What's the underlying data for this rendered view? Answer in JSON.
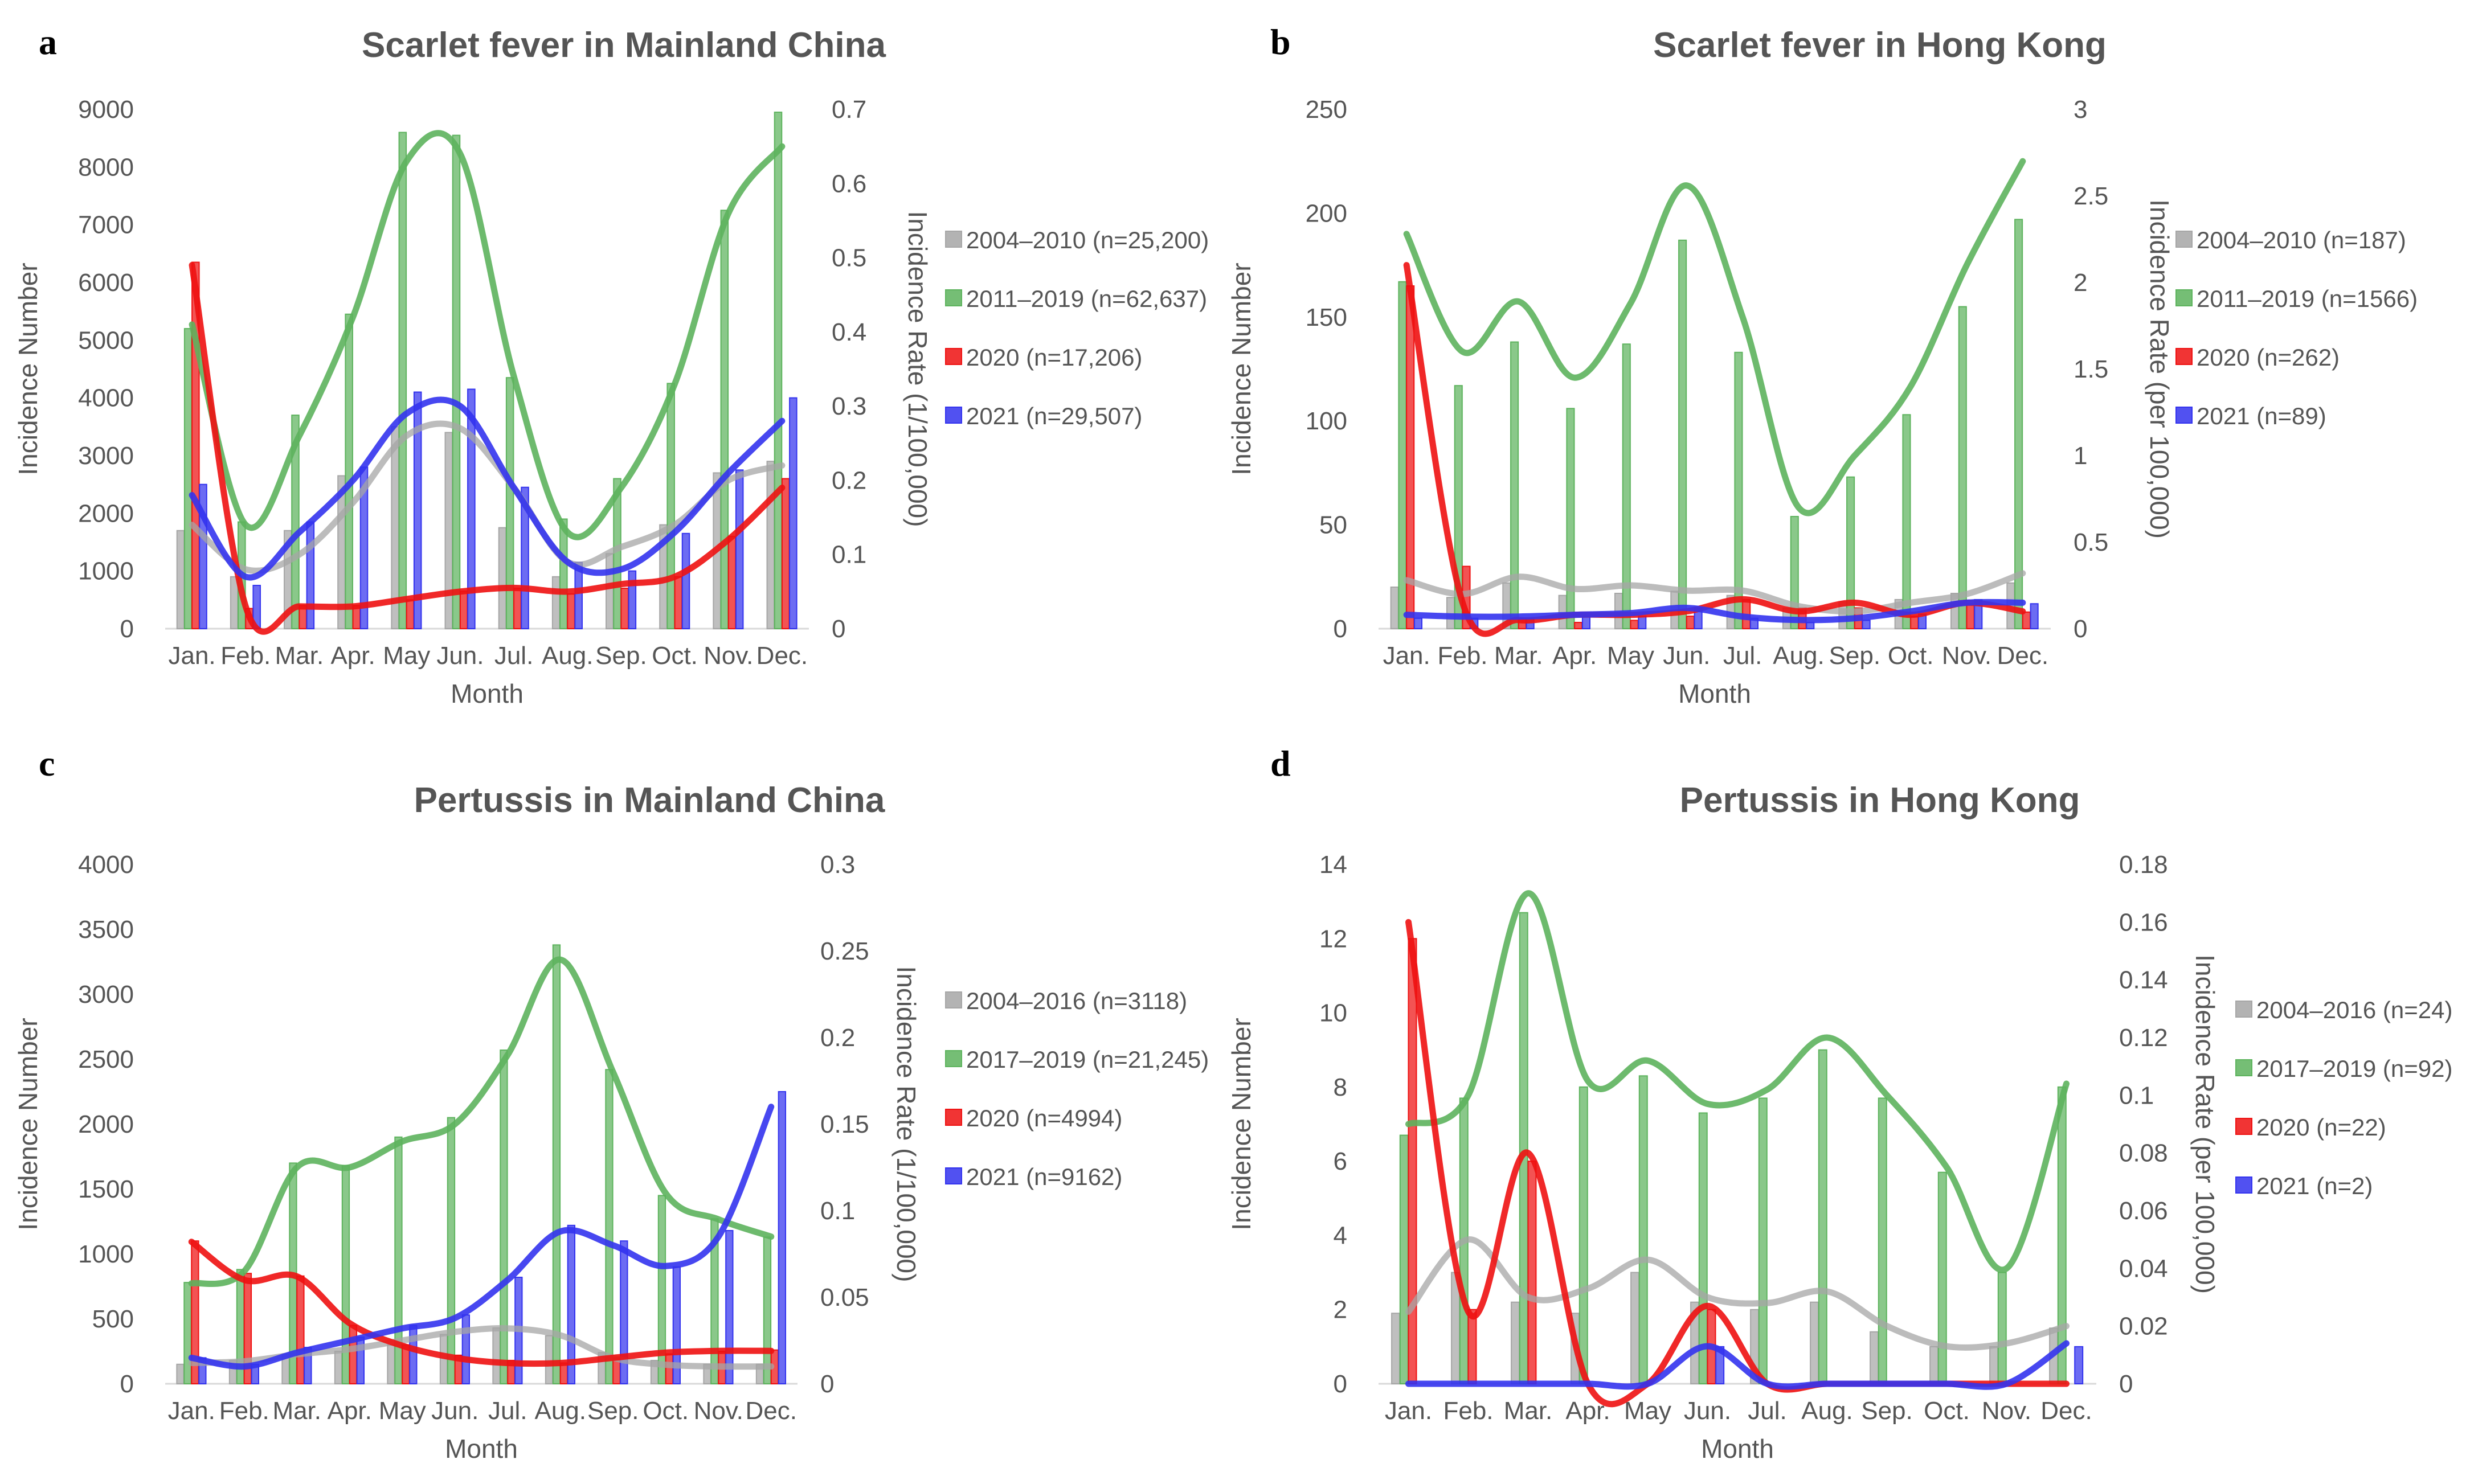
{
  "chart_data": [
    {
      "type": "bar",
      "panel": "a",
      "title": "Scarlet fever in Mainland China",
      "xlabel": "Month",
      "ylabel": "Incidence Number",
      "y2label": "Incidence Rate (1/100,000)",
      "categories": [
        "Jan.",
        "Feb.",
        "Mar.",
        "Apr.",
        "May",
        "Jun.",
        "Jul.",
        "Aug.",
        "Sep.",
        "Oct.",
        "Nov.",
        "Dec."
      ],
      "ylim": [
        0,
        9000
      ],
      "yticks": [
        "0",
        "1000",
        "2000",
        "3000",
        "4000",
        "5000",
        "6000",
        "7000",
        "8000",
        "9000"
      ],
      "y2lim": [
        0,
        0.7
      ],
      "y2ticks": [
        "0",
        "0.1",
        "0.2",
        "0.3",
        "0.4",
        "0.5",
        "0.6",
        "0.7"
      ],
      "series": [
        {
          "name": "2004–2010 (n=25,200)",
          "color": "#a6a6a6",
          "bars": [
            1700,
            900,
            1700,
            2650,
            3500,
            3400,
            1750,
            900,
            1300,
            1800,
            2700,
            2900
          ],
          "rate_line": [
            0.14,
            0.08,
            0.1,
            0.17,
            0.26,
            0.27,
            0.19,
            0.09,
            0.11,
            0.14,
            0.2,
            0.22
          ]
        },
        {
          "name": "2011–2019 (n=62,637)",
          "color": "#5db35d",
          "bars": [
            5200,
            1850,
            3700,
            5450,
            8600,
            8550,
            4350,
            1900,
            2600,
            4250,
            7250,
            8950
          ],
          "rate_line": [
            0.41,
            0.14,
            0.26,
            0.42,
            0.63,
            0.64,
            0.34,
            0.13,
            0.19,
            0.33,
            0.56,
            0.65
          ]
        },
        {
          "name": "2020 (n=17,206)",
          "color": "#ee1111",
          "bars": [
            6350,
            350,
            400,
            400,
            500,
            650,
            700,
            600,
            700,
            900,
            1600,
            2600
          ],
          "rate_line": [
            0.49,
            0.03,
            0.03,
            0.03,
            0.04,
            0.05,
            0.055,
            0.05,
            0.06,
            0.07,
            0.12,
            0.19
          ]
        },
        {
          "name": "2021 (n=29,507)",
          "color": "#3333ee",
          "bars": [
            2500,
            750,
            1850,
            2800,
            4100,
            4150,
            2450,
            1150,
            1000,
            1650,
            2750,
            4000
          ],
          "rate_line": [
            0.18,
            0.07,
            0.13,
            0.2,
            0.29,
            0.3,
            0.19,
            0.09,
            0.08,
            0.13,
            0.21,
            0.28
          ]
        }
      ]
    },
    {
      "type": "bar",
      "panel": "b",
      "title": "Scarlet fever in Hong Kong",
      "xlabel": "Month",
      "ylabel": "Incidence Number",
      "y2label": "Incidence Rate (per 100,000)",
      "categories": [
        "Jan.",
        "Feb.",
        "Mar.",
        "Apr.",
        "May",
        "Jun.",
        "Jul.",
        "Aug.",
        "Sep.",
        "Oct.",
        "Nov.",
        "Dec."
      ],
      "ylim": [
        0,
        250
      ],
      "yticks": [
        "0",
        "50",
        "100",
        "150",
        "200",
        "250"
      ],
      "y2lim": [
        0,
        3
      ],
      "y2ticks": [
        "0",
        "0.5",
        "1",
        "1.5",
        "2",
        "2.5",
        "3"
      ],
      "series": [
        {
          "name": "2004–2010 (n=187)",
          "color": "#a6a6a6",
          "bars": [
            20,
            15,
            22,
            16,
            17,
            18,
            16,
            10,
            13,
            14,
            17,
            22
          ],
          "rate_line": [
            0.28,
            0.2,
            0.3,
            0.23,
            0.25,
            0.22,
            0.22,
            0.13,
            0.1,
            0.15,
            0.2,
            0.32
          ]
        },
        {
          "name": "2011–2019 (n=1566)",
          "color": "#5db35d",
          "bars": [
            167,
            117,
            138,
            106,
            137,
            187,
            133,
            54,
            73,
            103,
            155,
            197
          ],
          "rate_line": [
            2.28,
            1.6,
            1.89,
            1.45,
            1.88,
            2.56,
            1.8,
            0.7,
            1.0,
            1.4,
            2.1,
            2.7
          ]
        },
        {
          "name": "2020 (n=262)",
          "color": "#ee1111",
          "bars": [
            165,
            30,
            5,
            3,
            4,
            6,
            14,
            10,
            10,
            6,
            12,
            8
          ],
          "rate_line": [
            2.1,
            0.15,
            0.05,
            0.08,
            0.08,
            0.1,
            0.17,
            0.1,
            0.15,
            0.08,
            0.15,
            0.1
          ]
        },
        {
          "name": "2021 (n=89)",
          "color": "#3333ee",
          "bars": [
            5,
            5,
            5,
            6,
            6,
            10,
            5,
            3,
            4,
            7,
            14,
            12
          ],
          "rate_line": [
            0.08,
            0.07,
            0.07,
            0.08,
            0.09,
            0.12,
            0.07,
            0.05,
            0.06,
            0.1,
            0.15,
            0.15
          ]
        }
      ]
    },
    {
      "type": "bar",
      "panel": "c",
      "title": "Pertussis in Mainland China",
      "xlabel": "Month",
      "ylabel": "Incidence Number",
      "y2label": "Incidence Rate (1/100,000)",
      "categories": [
        "Jan.",
        "Feb.",
        "Mar.",
        "Apr.",
        "May",
        "Jun.",
        "Jul.",
        "Aug.",
        "Sep.",
        "Oct.",
        "Nov.",
        "Dec."
      ],
      "ylim": [
        0,
        4000
      ],
      "yticks": [
        "0",
        "500",
        "1000",
        "1500",
        "2000",
        "2500",
        "3000",
        "3500",
        "4000"
      ],
      "y2lim": [
        0,
        0.3
      ],
      "y2ticks": [
        "0",
        "0.05",
        "0.1",
        "0.15",
        "0.2",
        "0.25",
        "0.3"
      ],
      "series": [
        {
          "name": "2004–2016 (n=3118)",
          "color": "#a6a6a6",
          "bars": [
            150,
            180,
            230,
            250,
            300,
            380,
            430,
            370,
            240,
            180,
            150,
            150
          ],
          "rate_line": [
            0.012,
            0.013,
            0.017,
            0.02,
            0.025,
            0.03,
            0.032,
            0.028,
            0.015,
            0.011,
            0.01,
            0.01
          ]
        },
        {
          "name": "2017–2019 (n=21,245)",
          "color": "#5db35d",
          "bars": [
            780,
            880,
            1700,
            1680,
            1900,
            2050,
            2570,
            3380,
            2420,
            1450,
            1270,
            1130
          ],
          "rate_line": [
            0.058,
            0.065,
            0.125,
            0.125,
            0.14,
            0.15,
            0.19,
            0.245,
            0.18,
            0.11,
            0.095,
            0.085
          ]
        },
        {
          "name": "2020 (n=4994)",
          "color": "#ee1111",
          "bars": [
            1100,
            850,
            830,
            450,
            300,
            220,
            180,
            160,
            200,
            230,
            250,
            260
          ],
          "rate_line": [
            0.082,
            0.06,
            0.062,
            0.035,
            0.022,
            0.015,
            0.012,
            0.012,
            0.015,
            0.018,
            0.019,
            0.019
          ]
        },
        {
          "name": "2021 (n=9162)",
          "color": "#3333ee",
          "bars": [
            200,
            150,
            280,
            360,
            450,
            530,
            820,
            1220,
            1100,
            900,
            1180,
            2250
          ],
          "rate_line": [
            0.015,
            0.01,
            0.018,
            0.025,
            0.032,
            0.038,
            0.06,
            0.088,
            0.08,
            0.068,
            0.085,
            0.16
          ]
        }
      ]
    },
    {
      "type": "bar",
      "panel": "d",
      "title": "Pertussis in Hong Kong",
      "xlabel": "Month",
      "ylabel": "Incidence Number",
      "y2label": "Incidence Rate (per 100,000)",
      "categories": [
        "Jan.",
        "Feb.",
        "Mar.",
        "Apr.",
        "May",
        "Jun.",
        "Jul.",
        "Aug.",
        "Sep.",
        "Oct.",
        "Nov.",
        "Dec."
      ],
      "ylim": [
        0,
        14
      ],
      "yticks": [
        "0",
        "2",
        "4",
        "6",
        "8",
        "10",
        "12",
        "14"
      ],
      "y2lim": [
        0,
        0.18
      ],
      "y2ticks": [
        "0",
        "0.02",
        "0.04",
        "0.06",
        "0.08",
        "0.1",
        "0.12",
        "0.14",
        "0.16",
        "0.18"
      ],
      "series": [
        {
          "name": "2004–2016 (n=24)",
          "color": "#a6a6a6",
          "bars": [
            1.9,
            3.0,
            2.2,
            1.9,
            3.0,
            2.2,
            2.0,
            2.2,
            1.4,
            1.0,
            1.0,
            1.5
          ],
          "rate_line": [
            0.025,
            0.05,
            0.03,
            0.033,
            0.043,
            0.03,
            0.028,
            0.032,
            0.02,
            0.013,
            0.014,
            0.02
          ]
        },
        {
          "name": "2017–2019 (n=92)",
          "color": "#5db35d",
          "bars": [
            6.7,
            7.7,
            12.7,
            8.0,
            8.3,
            7.3,
            7.7,
            9.0,
            7.7,
            5.7,
            3.0,
            8.0
          ],
          "rate_line": [
            0.09,
            0.1,
            0.17,
            0.105,
            0.112,
            0.097,
            0.102,
            0.12,
            0.1,
            0.075,
            0.04,
            0.104
          ]
        },
        {
          "name": "2020 (n=22)",
          "color": "#ee1111",
          "bars": [
            12.0,
            2.0,
            6.0,
            0,
            0,
            2.0,
            0,
            0,
            0,
            0,
            0,
            0
          ],
          "rate_line": [
            0.16,
            0.025,
            0.08,
            0,
            0,
            0.027,
            0,
            0,
            0,
            0,
            0,
            0
          ]
        },
        {
          "name": "2021 (n=2)",
          "color": "#3333ee",
          "bars": [
            0,
            0,
            0,
            0,
            0,
            1.0,
            0,
            0,
            0,
            0,
            0,
            1.0
          ],
          "rate_line": [
            0,
            0,
            0,
            0,
            0,
            0.013,
            0,
            0,
            0,
            0,
            0,
            0.014
          ]
        }
      ]
    }
  ]
}
